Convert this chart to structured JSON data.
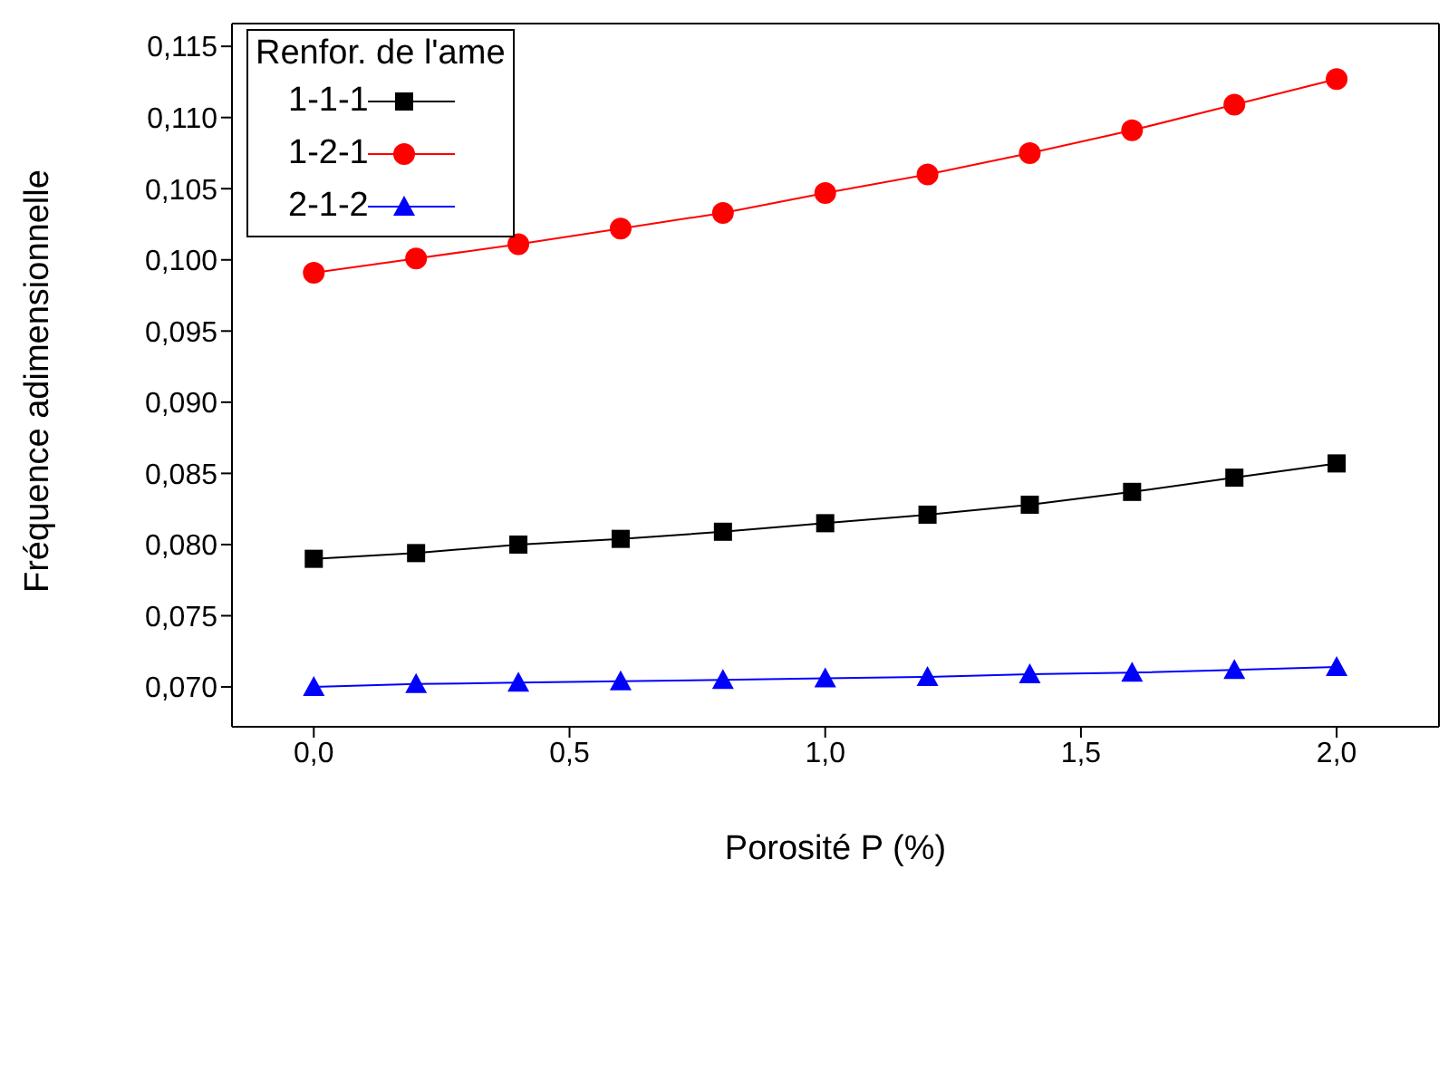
{
  "chart_data": {
    "type": "line",
    "xlabel": "Porosité P (%)",
    "ylabel": "Fréquence adimensionnelle",
    "legend_title": "Renfor. de l'ame",
    "legend": "top left",
    "grid": false,
    "x": [
      0,
      0.2,
      0.4,
      0.6,
      0.8,
      1.0,
      1.2,
      1.4,
      1.6,
      1.8,
      2.0
    ],
    "xlim": [
      -0.16,
      2.2
    ],
    "xticks": [
      {
        "value": 0,
        "label": "0,0"
      },
      {
        "value": 0.5,
        "label": "0,5"
      },
      {
        "value": 1,
        "label": "1,0"
      },
      {
        "value": 1.5,
        "label": "1,5"
      },
      {
        "value": 2,
        "label": "2,0"
      }
    ],
    "ylim": [
      0.0672,
      0.1166
    ],
    "yticks": [
      {
        "value": 0.07,
        "label": "0,070"
      },
      {
        "value": 0.075,
        "label": "0,075"
      },
      {
        "value": 0.08,
        "label": "0,080"
      },
      {
        "value": 0.085,
        "label": "0,085"
      },
      {
        "value": 0.09,
        "label": "0,090"
      },
      {
        "value": 0.095,
        "label": "0,095"
      },
      {
        "value": 0.1,
        "label": "0,100"
      },
      {
        "value": 0.105,
        "label": "0,105"
      },
      {
        "value": 0.11,
        "label": "0,110"
      },
      {
        "value": 0.115,
        "label": "0,115"
      }
    ],
    "series": [
      {
        "name": "1-1-1",
        "color": "#000000",
        "marker": "square",
        "values": [
          0.079,
          0.0794,
          0.08,
          0.0804,
          0.0809,
          0.0815,
          0.0821,
          0.0828,
          0.0837,
          0.0847,
          0.0857
        ]
      },
      {
        "name": "1-2-1",
        "color": "#ff0000",
        "marker": "circle",
        "values": [
          0.0991,
          0.1001,
          0.1011,
          0.1022,
          0.1033,
          0.1047,
          0.106,
          0.1075,
          0.1091,
          0.1109,
          0.1127
        ]
      },
      {
        "name": "2-1-2",
        "color": "#0000ff",
        "marker": "triangle",
        "values": [
          0.07,
          0.0702,
          0.0703,
          0.0704,
          0.0705,
          0.0706,
          0.0707,
          0.0709,
          0.071,
          0.0712,
          0.0714
        ]
      }
    ]
  }
}
